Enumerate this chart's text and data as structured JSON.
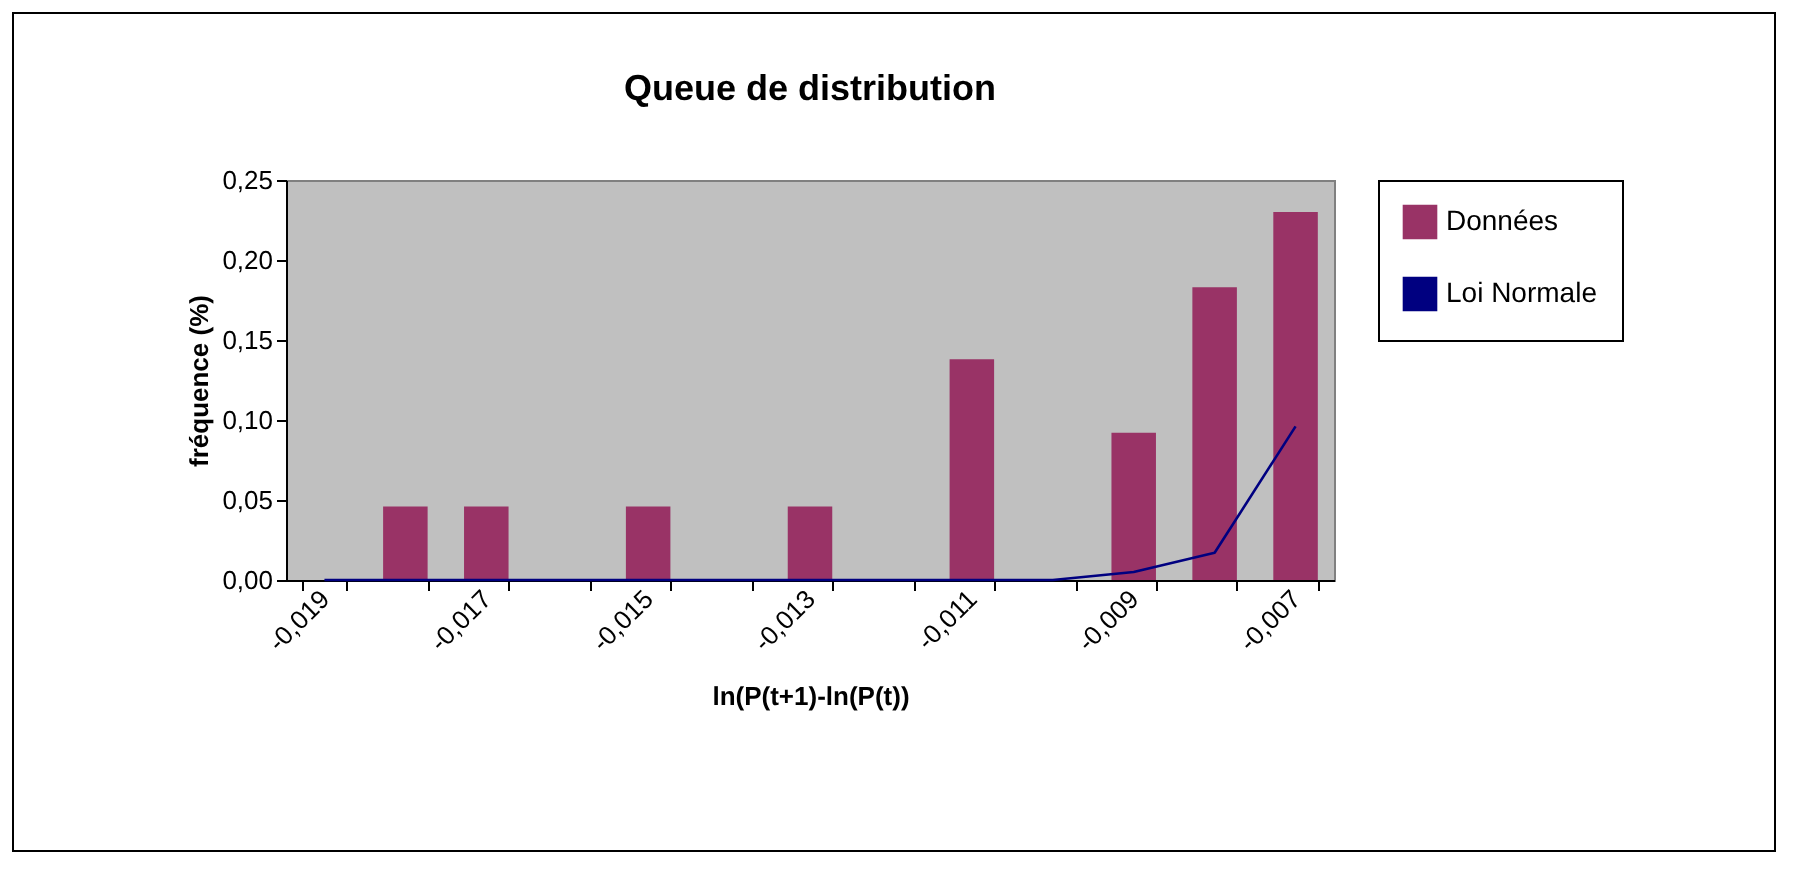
{
  "chart_data": {
    "type": "bar",
    "title": "Queue de distribution",
    "xlabel": "ln(P(t+1)-ln(P(t))",
    "ylabel": "fréquence (%)",
    "categories": [
      "-0,019",
      null,
      "-0,017",
      null,
      "-0,015",
      null,
      "-0,013",
      null,
      "-0,011",
      null,
      "-0,009",
      null,
      "-0,007"
    ],
    "series": [
      {
        "name": "Données",
        "type": "bar",
        "color": "#993366",
        "values": [
          0,
          0.046,
          0.046,
          0,
          0.046,
          0,
          0.046,
          0,
          0.138,
          0,
          0.092,
          0.183,
          0.23
        ]
      },
      {
        "name": "Loi Normale",
        "type": "line",
        "color": "#000080",
        "values": [
          0,
          0,
          0,
          0,
          0,
          0,
          0,
          0,
          0,
          0,
          0.005,
          0.017,
          0.096
        ]
      }
    ],
    "ylim": [
      0,
      0.25
    ],
    "yticks": [
      {
        "value": 0,
        "label": "0,00"
      },
      {
        "value": 0.05,
        "label": "0,05"
      },
      {
        "value": 0.1,
        "label": "0,10"
      },
      {
        "value": 0.15,
        "label": "0,15"
      },
      {
        "value": 0.2,
        "label": "0,20"
      },
      {
        "value": 0.25,
        "label": "0,25"
      }
    ],
    "grid": false,
    "legend": "right"
  }
}
